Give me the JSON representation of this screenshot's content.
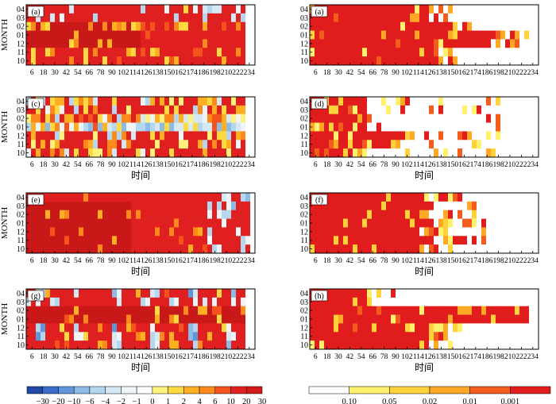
{
  "chart_data": [
    {
      "type": "heatmap",
      "panel_label": "(a)",
      "ylabel": "MONTH",
      "xlabel": "",
      "y_categories": [
        "04",
        "03",
        "02",
        "01",
        "12",
        "11",
        "10"
      ],
      "x_ticks": [
        6,
        18,
        30,
        42,
        54,
        66,
        78,
        90,
        102,
        114,
        126,
        138,
        150,
        162,
        174,
        186,
        198,
        210,
        222,
        234
      ],
      "x_range": [
        0,
        240
      ],
      "scale": "diverging",
      "summary": {
        "dominant_level": 30,
        "white_after": 228
      }
    },
    {
      "type": "heatmap",
      "panel_label": "(a)",
      "ylabel": "",
      "xlabel": "",
      "y_categories": [
        "04",
        "03",
        "02",
        "01",
        "12",
        "11",
        "10"
      ],
      "x_ticks": [
        6,
        18,
        30,
        42,
        54,
        66,
        78,
        90,
        102,
        114,
        126,
        138,
        150,
        162,
        174,
        186,
        198,
        210,
        222,
        234
      ],
      "x_range": [
        0,
        240
      ],
      "scale": "pvalue",
      "summary": {
        "dominant_level": 0.001,
        "significant_until": 126
      }
    },
    {
      "type": "heatmap",
      "panel_label": "(c)",
      "ylabel": "MONTH",
      "xlabel": "时间",
      "y_categories": [
        "04",
        "03",
        "02",
        "01",
        "12",
        "11",
        "10"
      ],
      "x_ticks": [
        6,
        18,
        30,
        42,
        54,
        66,
        78,
        90,
        102,
        114,
        126,
        138,
        150,
        162,
        174,
        186,
        198,
        210,
        222,
        234
      ],
      "x_range": [
        0,
        240
      ],
      "scale": "diverging",
      "summary": {
        "dominant_level": 10,
        "negative_row": "01"
      }
    },
    {
      "type": "heatmap",
      "panel_label": "(d)",
      "ylabel": "",
      "xlabel": "时间",
      "y_categories": [
        "04",
        "03",
        "02",
        "01",
        "12",
        "11",
        "10"
      ],
      "x_ticks": [
        6,
        18,
        30,
        42,
        54,
        66,
        78,
        90,
        102,
        114,
        126,
        138,
        150,
        162,
        174,
        186,
        198,
        210,
        222,
        234
      ],
      "x_range": [
        0,
        240
      ],
      "scale": "pvalue",
      "summary": {
        "dominant_level": 0.001,
        "significant_until": 90
      }
    },
    {
      "type": "heatmap",
      "panel_label": "(e)",
      "ylabel": "MONTH",
      "xlabel": "时间",
      "y_categories": [
        "04",
        "03",
        "02",
        "01",
        "12",
        "11",
        "10"
      ],
      "x_ticks": [
        6,
        18,
        30,
        42,
        54,
        66,
        78,
        90,
        102,
        114,
        126,
        138,
        150,
        162,
        174,
        186,
        198,
        210,
        222,
        234
      ],
      "x_range": [
        0,
        240
      ],
      "scale": "diverging",
      "summary": {
        "dominant_level": 30,
        "white_after": 234
      }
    },
    {
      "type": "heatmap",
      "panel_label": "(f)",
      "ylabel": "",
      "xlabel": "时间",
      "y_categories": [
        "04",
        "03",
        "02",
        "01",
        "12",
        "11",
        "10"
      ],
      "x_ticks": [
        6,
        18,
        30,
        42,
        54,
        66,
        78,
        90,
        102,
        114,
        126,
        138,
        150,
        162,
        174,
        186,
        198,
        210,
        222,
        234
      ],
      "x_range": [
        0,
        240
      ],
      "scale": "pvalue",
      "summary": {
        "dominant_level": 0.001,
        "significant_until": 114
      }
    },
    {
      "type": "heatmap",
      "panel_label": "(g)",
      "ylabel": "MONTH",
      "xlabel": "时间",
      "y_categories": [
        "04",
        "03",
        "02",
        "01",
        "12",
        "11",
        "10"
      ],
      "x_ticks": [
        6,
        18,
        30,
        42,
        54,
        66,
        78,
        90,
        102,
        114,
        126,
        138,
        150,
        162,
        174,
        186,
        198,
        210,
        222,
        234
      ],
      "x_range": [
        0,
        240
      ],
      "scale": "diverging",
      "summary": {
        "dominant_level": 30,
        "periodic_negative_rows": [
          "04",
          "12",
          "11",
          "10"
        ]
      }
    },
    {
      "type": "heatmap",
      "panel_label": "(h)",
      "ylabel": "",
      "xlabel": "时间",
      "y_categories": [
        "04",
        "03",
        "02",
        "01",
        "12",
        "11",
        "10"
      ],
      "x_ticks": [
        6,
        18,
        30,
        42,
        54,
        66,
        78,
        90,
        102,
        114,
        126,
        138,
        150,
        162,
        174,
        186,
        198,
        210,
        222,
        234
      ],
      "x_range": [
        0,
        240
      ],
      "scale": "pvalue",
      "summary": {
        "dominant_level": 0.001,
        "significant_until": 126
      }
    }
  ],
  "colorbars": {
    "diverging": {
      "labels": [
        "−30",
        "−20",
        "−10",
        "−6",
        "−4",
        "−2",
        "−1",
        "0",
        "1",
        "2",
        "4",
        "6",
        "10",
        "20",
        "30"
      ],
      "colors": [
        "#2049a8",
        "#3a6cc8",
        "#6196dc",
        "#8dbbe8",
        "#b4d6ef",
        "#d5e8f4",
        "#eef4f8",
        "#ffffff",
        "#fff27a",
        "#ffd940",
        "#ffb020",
        "#ff8a1c",
        "#f4541c",
        "#e02020",
        "#d41818"
      ]
    },
    "pvalue": {
      "labels": [
        "0.10",
        "0.05",
        "0.02",
        "0.01",
        "0.001"
      ],
      "colors": [
        "#ffffff",
        "#fff06e",
        "#ffd23c",
        "#ffa826",
        "#f25c1c",
        "#e01c1c"
      ]
    }
  }
}
